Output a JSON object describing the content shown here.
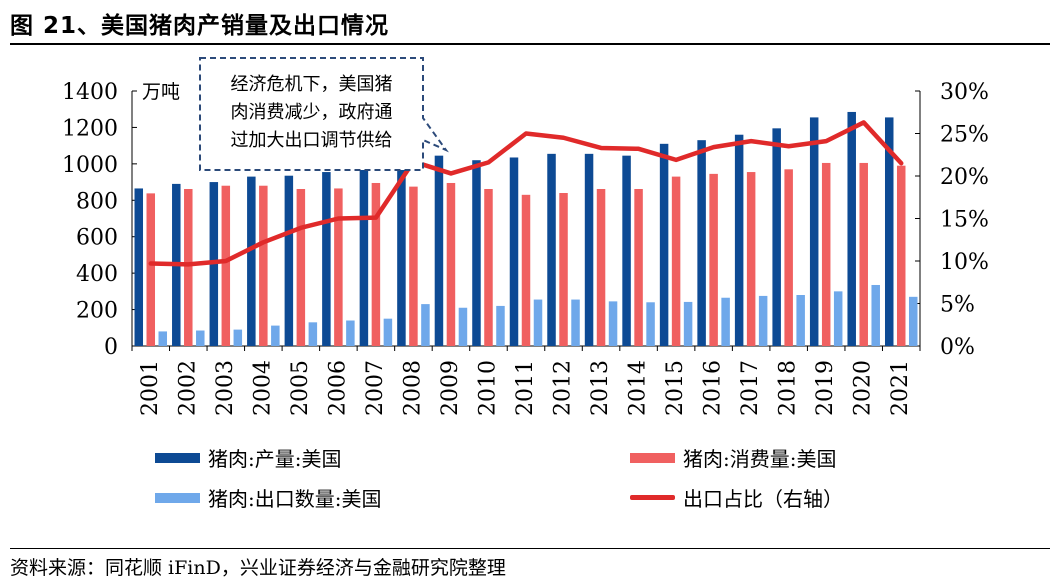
{
  "figure": {
    "title": "图 21、美国猪肉产销量及出口情况",
    "source": "资料来源：同花顺 iFinD，兴业证券经济与金融研究院整理"
  },
  "chart_data": {
    "type": "bar",
    "categories": [
      "2001",
      "2002",
      "2003",
      "2004",
      "2005",
      "2006",
      "2007",
      "2008",
      "2009",
      "2010",
      "2011",
      "2012",
      "2013",
      "2014",
      "2015",
      "2016",
      "2017",
      "2018",
      "2019",
      "2020",
      "2021"
    ],
    "series": [
      {
        "name": "猪肉:产量:美国",
        "axis": "left",
        "kind": "bar",
        "color": "#0d4a94",
        "values": [
          865,
          890,
          900,
          930,
          935,
          955,
          995,
          1060,
          1045,
          1020,
          1035,
          1055,
          1055,
          1045,
          1110,
          1130,
          1160,
          1195,
          1255,
          1285,
          1255
        ]
      },
      {
        "name": "猪肉:消费量:美国",
        "axis": "left",
        "kind": "bar",
        "color": "#f06060",
        "values": [
          838,
          862,
          880,
          880,
          862,
          865,
          895,
          875,
          895,
          862,
          830,
          840,
          862,
          862,
          930,
          945,
          955,
          970,
          1005,
          1005,
          990
        ]
      },
      {
        "name": "猪肉:出口数量:美国",
        "axis": "left",
        "kind": "bar",
        "color": "#6fa8ea",
        "values": [
          80,
          85,
          90,
          112,
          130,
          140,
          150,
          230,
          210,
          220,
          255,
          255,
          245,
          240,
          242,
          265,
          275,
          280,
          300,
          335,
          270
        ]
      },
      {
        "name": "出口占比（右轴）",
        "axis": "right",
        "kind": "line",
        "color": "#e02a2a",
        "values": [
          0.097,
          0.096,
          0.1,
          0.122,
          0.139,
          0.15,
          0.151,
          0.217,
          0.203,
          0.216,
          0.25,
          0.245,
          0.233,
          0.232,
          0.219,
          0.234,
          0.241,
          0.235,
          0.241,
          0.263,
          0.215
        ]
      }
    ],
    "left_axis": {
      "unit": "万吨",
      "ylim": [
        0,
        1400
      ],
      "ticks": [
        "0",
        "200",
        "400",
        "600",
        "800",
        "1000",
        "1200",
        "1400"
      ],
      "tick_values": [
        0,
        200,
        400,
        600,
        800,
        1000,
        1200,
        1400
      ]
    },
    "right_axis": {
      "ylim": [
        0,
        0.3
      ],
      "ticks": [
        "0%",
        "5%",
        "10%",
        "15%",
        "20%",
        "25%",
        "30%"
      ],
      "tick_values": [
        0,
        0.05,
        0.1,
        0.15,
        0.2,
        0.25,
        0.3
      ]
    },
    "annotation": {
      "lines": [
        "经济危机下，美国猪",
        "肉消费减少，政府通",
        "过加大出口调节供给"
      ]
    },
    "legend": {
      "placement": "bottom"
    },
    "grid": false
  }
}
